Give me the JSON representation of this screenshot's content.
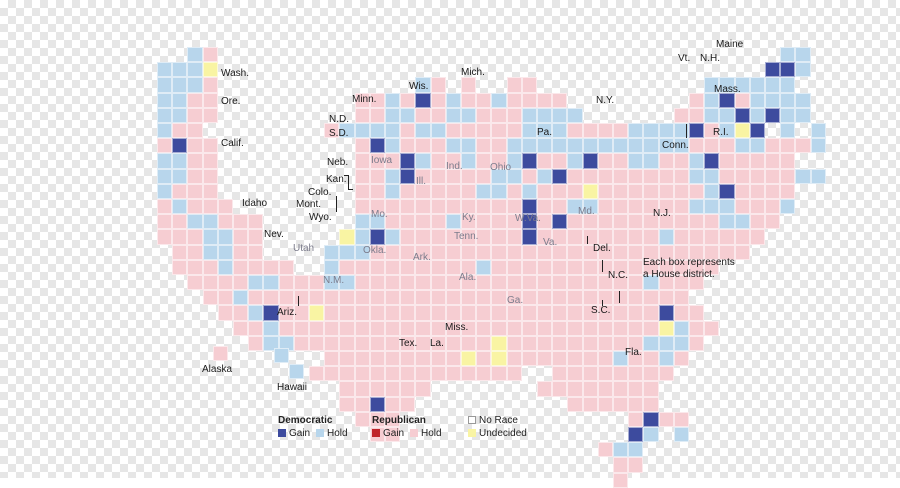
{
  "colors": {
    "dem_gain": "#3d4b9e",
    "dem_hold": "#b8d6ec",
    "rep_gain": "#c0242a",
    "rep_hold": "#f6cdd2",
    "no_race": "#ffffff",
    "undecided": "#f9f4a3",
    "label_dark": "#1a1a1a",
    "label_faint": "#7c7c8c"
  },
  "note": {
    "line1": "Each box represents",
    "line2": "a House district."
  },
  "legend": {
    "democratic": {
      "title": "Democratic",
      "gain": "Gain",
      "hold": "Hold"
    },
    "republican": {
      "title": "Republican",
      "gain": "Gain",
      "hold": "Hold"
    },
    "other": {
      "no_race": "No Race",
      "undecided": "Undecided"
    }
  },
  "state_labels": [
    "Maine",
    "Vt.",
    "N.H.",
    "Mass.",
    "R.I.",
    "Conn.",
    "N.Y.",
    "N.J.",
    "Del.",
    "Md.",
    "Pa.",
    "N.C.",
    "S.C.",
    "Ga.",
    "Fla.",
    "Ala.",
    "Miss.",
    "La.",
    "Tex.",
    "Ark.",
    "Tenn.",
    "Ky.",
    "W.Va.",
    "Va.",
    "Ohio",
    "Ind.",
    "Ill.",
    "Mich.",
    "Wis.",
    "Minn.",
    "Iowa",
    "Mo.",
    "Okla.",
    "Kan.",
    "Neb.",
    "N.D.",
    "S.D.",
    "Mont.",
    "Wyo.",
    "Colo.",
    "Utah",
    "N.M.",
    "Ariz.",
    "Nev.",
    "Idaho",
    "Calif.",
    "Ore.",
    "Wash.",
    "Alaska",
    "Hawaii"
  ]
}
